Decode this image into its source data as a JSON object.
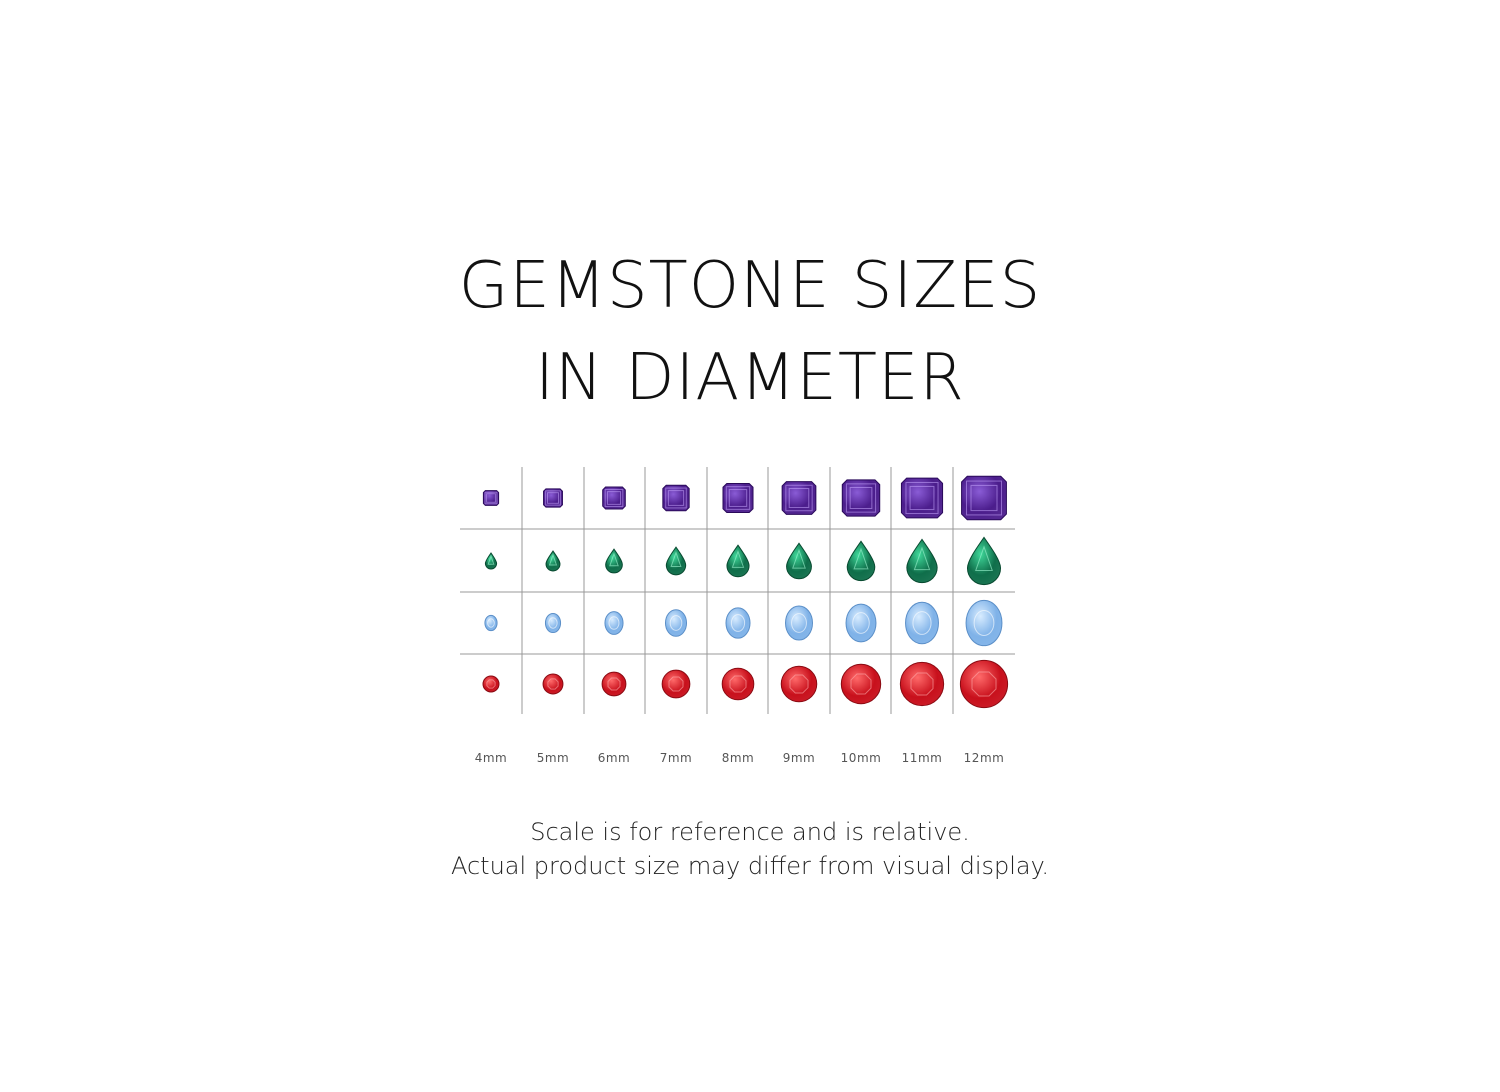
{
  "title": {
    "line1": "GEMSTONE SIZES",
    "line2": "IN DIAMETER"
  },
  "sizes": [
    "4mm",
    "5mm",
    "6mm",
    "7mm",
    "8mm",
    "9mm",
    "10mm",
    "11mm",
    "12mm"
  ],
  "size_values_mm": [
    4,
    5,
    6,
    7,
    8,
    9,
    10,
    11,
    12
  ],
  "rows": [
    {
      "shape": "emerald-cut",
      "gem": "amethyst",
      "color": "#4b1d8c",
      "light": "#8a5cd6"
    },
    {
      "shape": "pear",
      "gem": "emerald",
      "color": "#0f6e4a",
      "light": "#3fd89a"
    },
    {
      "shape": "oval",
      "gem": "aquamarine",
      "color": "#7fb2e8",
      "light": "#d8ecff"
    },
    {
      "shape": "round",
      "gem": "ruby",
      "color": "#c8101c",
      "light": "#ff6a6a"
    }
  ],
  "grid_color": "#999999",
  "note": {
    "line1": "Scale is for reference and is relative.",
    "line2": "Actual product size may differ from visual display."
  }
}
